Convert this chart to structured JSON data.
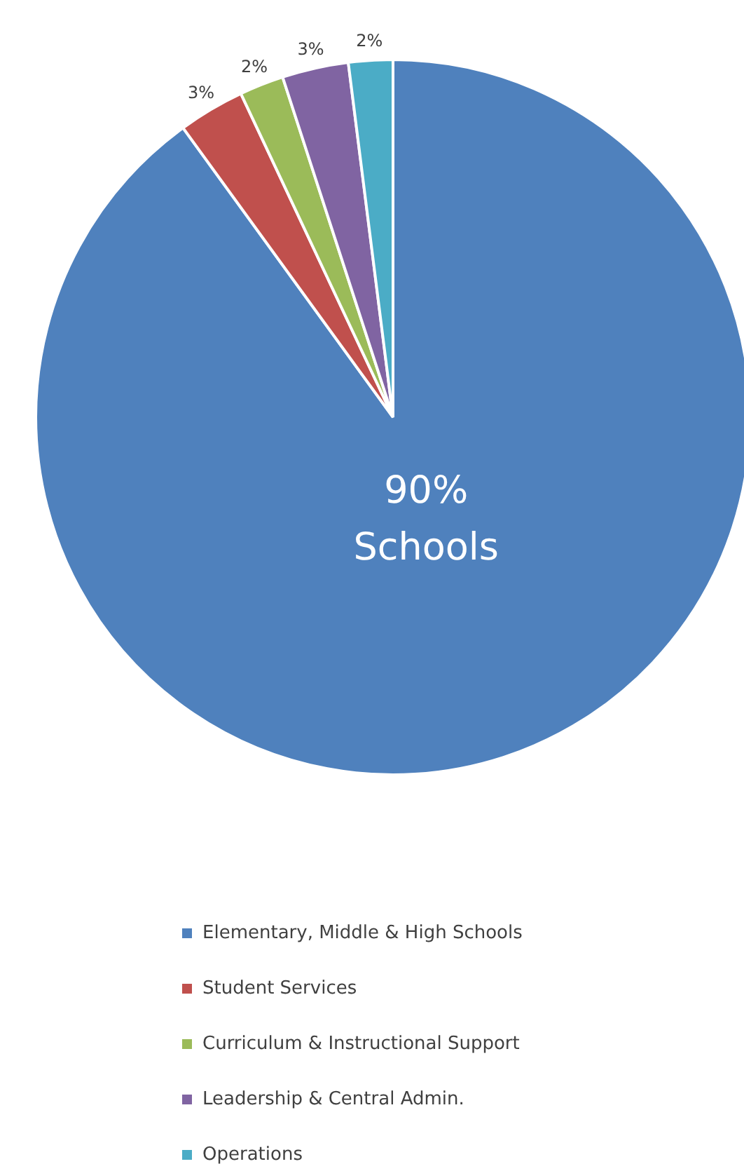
{
  "chart_data": {
    "type": "pie",
    "categories": [
      "Elementary, Middle & High Schools",
      "Student Services",
      "Curriculum & Instructional Support",
      "Leadership & Central Admin.",
      "Operations"
    ],
    "values": [
      90,
      3,
      2,
      3,
      2
    ],
    "colors": [
      "#4f81bd",
      "#c0504d",
      "#9bbb59",
      "#8064a2",
      "#4bacc6"
    ],
    "value_labels": [
      "90%\nSchools",
      "3%",
      "2%",
      "3%",
      "2%"
    ],
    "legend": "bottom"
  }
}
